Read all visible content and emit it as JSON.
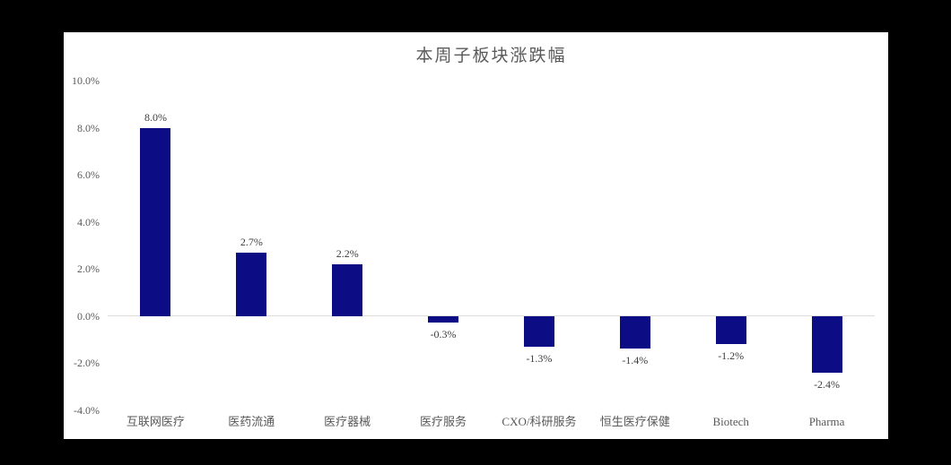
{
  "window": {
    "frame_background": "#000000",
    "panel_background": "#ffffff"
  },
  "chart_data": {
    "type": "bar",
    "title": "本周子板块涨跌幅",
    "categories": [
      "互联网医疗",
      "医药流通",
      "医疗器械",
      "医疗服务",
      "CXO/科研服务",
      "恒生医疗保健",
      "Biotech",
      "Pharma"
    ],
    "values": [
      8.0,
      2.7,
      2.2,
      -0.3,
      -1.3,
      -1.4,
      -1.2,
      -2.4
    ],
    "value_labels": [
      "8.0%",
      "2.7%",
      "2.2%",
      "-0.3%",
      "-1.3%",
      "-1.4%",
      "-1.2%",
      "-2.4%"
    ],
    "y_ticks": [
      {
        "value": 10,
        "label": "10.0%"
      },
      {
        "value": 8,
        "label": "8.0%"
      },
      {
        "value": 6,
        "label": "6.0%"
      },
      {
        "value": 4,
        "label": "4.0%"
      },
      {
        "value": 2,
        "label": "2.0%"
      },
      {
        "value": 0,
        "label": "0.0%"
      },
      {
        "value": -2,
        "label": "-2.0%"
      },
      {
        "value": -4,
        "label": "-4.0%"
      }
    ],
    "ylim": [
      -4,
      10
    ],
    "xlabel": "",
    "ylabel": "",
    "grid": false,
    "legend": null,
    "colors": {
      "bar": "#0c0c84",
      "title_text": "#5a5a5a",
      "axis_text": "#595959",
      "value_text": "#3d3d3d",
      "zero_line": "#dcdcdc"
    }
  }
}
